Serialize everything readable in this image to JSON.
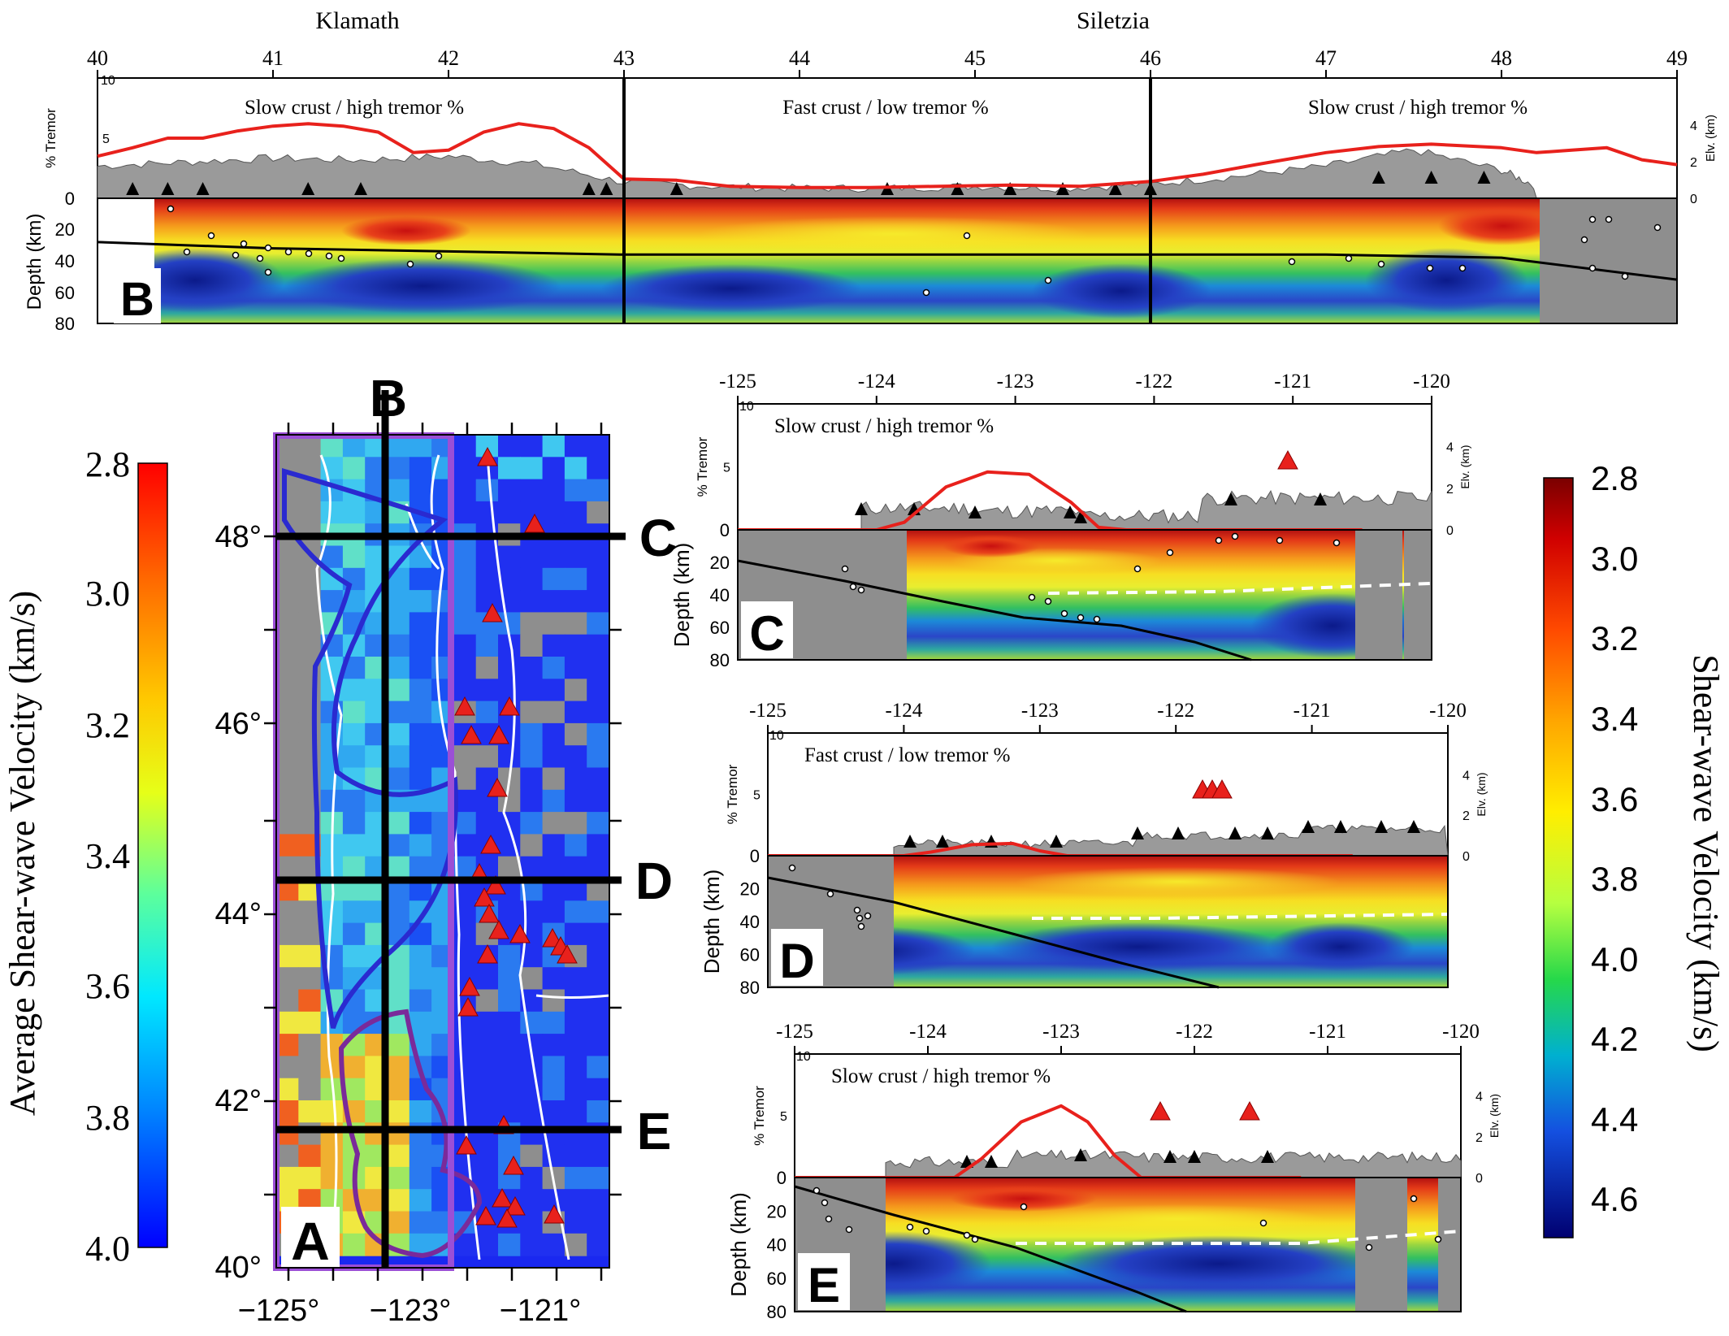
{
  "chart_data": [
    {
      "id": "B",
      "type": "profile-cross-section",
      "panel_letter": "B",
      "region_labels": [
        "Klamath",
        "Siletzia"
      ],
      "x_ticks": [
        "40",
        "41",
        "42",
        "43",
        "44",
        "45",
        "46",
        "47",
        "48",
        "49"
      ],
      "xlim": [
        40,
        49
      ],
      "dividers": [
        43,
        46
      ],
      "segment_labels": [
        "Slow crust / high tremor %",
        "Fast crust / low tremor %",
        "Slow crust / high tremor %"
      ],
      "tremor_axis": {
        "label": "% Tremor",
        "ticks": [
          "5",
          "10"
        ],
        "ylim": [
          0,
          10
        ]
      },
      "elevation_axis": {
        "label": "Elv. (km)",
        "ticks": [
          "0",
          "2",
          "4"
        ],
        "ylim": [
          0,
          6
        ]
      },
      "depth_axis": {
        "label": "Depth (km)",
        "ticks": [
          "0",
          "20",
          "40",
          "60",
          "80"
        ],
        "ylim": [
          0,
          80
        ]
      },
      "tremor_curve": {
        "x": [
          40,
          40.2,
          40.4,
          40.6,
          40.8,
          41,
          41.2,
          41.4,
          41.6,
          41.8,
          42,
          42.2,
          42.4,
          42.6,
          42.8,
          43,
          43.3,
          43.6,
          44,
          44.4,
          44.8,
          45.2,
          45.6,
          46,
          46.3,
          46.6,
          47,
          47.3,
          47.6,
          48,
          48.2,
          48.4,
          48.6,
          48.8,
          49
        ],
        "y": [
          3.5,
          4.2,
          5.0,
          5.0,
          5.6,
          6.0,
          6.2,
          6.0,
          5.5,
          3.8,
          4.0,
          5.5,
          6.2,
          5.8,
          4.2,
          1.6,
          1.5,
          1.0,
          0.9,
          0.9,
          1.0,
          1.1,
          1.0,
          1.4,
          2.0,
          2.8,
          3.8,
          4.3,
          4.5,
          4.2,
          3.8,
          4.0,
          4.2,
          3.2,
          2.8
        ]
      },
      "elevation_profile": {
        "x": [
          40,
          40.5,
          41,
          41.5,
          42,
          42.5,
          43,
          43.5,
          44,
          44.5,
          45,
          45.5,
          46,
          46.5,
          47,
          47.5,
          48,
          48.2
        ],
        "y": [
          1.4,
          1.6,
          1.8,
          1.7,
          1.9,
          1.5,
          0.6,
          0.4,
          0.3,
          0.3,
          0.4,
          0.3,
          0.5,
          0.9,
          1.4,
          2.2,
          1.2,
          0.4
        ]
      },
      "slab_line": {
        "x": [
          40,
          41,
          42,
          43,
          44,
          45,
          46,
          47,
          48,
          49
        ],
        "y": [
          28,
          32,
          34,
          36,
          36,
          36,
          36,
          36,
          38,
          52
        ]
      }
    },
    {
      "id": "A",
      "type": "heatmap-map",
      "panel_letter": "A",
      "x_ticks": [
        "−125°",
        "−123°",
        "−121°"
      ],
      "y_ticks": [
        "48°",
        "46°",
        "44°",
        "42°",
        "40°"
      ],
      "xlim": [
        -125,
        -120
      ],
      "ylim": [
        40,
        49
      ],
      "profile_labels": [
        "B",
        "C",
        "D",
        "E"
      ],
      "profile_latitudes": {
        "C": 48.0,
        "D": 44.3,
        "E": 41.6
      },
      "profile_longitude_B": -123.2
    },
    {
      "id": "C",
      "type": "profile-cross-section",
      "panel_letter": "C",
      "x_ticks": [
        "-125",
        "-124",
        "-123",
        "-122",
        "-121",
        "-120"
      ],
      "xlim": [
        -125,
        -120
      ],
      "segment_label": "Slow crust / high tremor %",
      "tremor_axis": {
        "label": "% Tremor",
        "ticks": [
          "5",
          "10"
        ]
      },
      "elevation_axis": {
        "label": "Elv. (km)",
        "ticks": [
          "0",
          "2",
          "4"
        ]
      },
      "depth_axis": {
        "label": "Depth (km)",
        "ticks": [
          "0",
          "20",
          "40",
          "60",
          "80"
        ]
      },
      "tremor_curve": {
        "x": [
          -125,
          -124,
          -123.8,
          -123.5,
          -123.2,
          -122.9,
          -122.6,
          -122.4,
          -122.2,
          -120.5
        ],
        "y": [
          0,
          0,
          0.6,
          3.4,
          4.6,
          4.4,
          2.2,
          0.2,
          0,
          0
        ]
      }
    },
    {
      "id": "D",
      "type": "profile-cross-section",
      "panel_letter": "D",
      "x_ticks": [
        "-125",
        "-124",
        "-123",
        "-122",
        "-121",
        "-120"
      ],
      "xlim": [
        -125,
        -120
      ],
      "segment_label": "Fast crust / low tremor %",
      "tremor_axis": {
        "label": "% Tremor",
        "ticks": [
          "5",
          "10"
        ]
      },
      "elevation_axis": {
        "label": "Elv. (km)",
        "ticks": [
          "0",
          "2",
          "4"
        ]
      },
      "depth_axis": {
        "label": "Depth (km)",
        "ticks": [
          "0",
          "20",
          "40",
          "60",
          "80"
        ]
      },
      "tremor_curve": {
        "x": [
          -125,
          -124,
          -123.8,
          -123.5,
          -123.2,
          -123,
          -122.8,
          -120.7
        ],
        "y": [
          0,
          0,
          0.3,
          0.9,
          1.0,
          0.4,
          0,
          0
        ]
      }
    },
    {
      "id": "E",
      "type": "profile-cross-section",
      "panel_letter": "E",
      "x_ticks": [
        "-125",
        "-124",
        "-123",
        "-122",
        "-121",
        "-120"
      ],
      "xlim": [
        -125,
        -120
      ],
      "segment_label": "Slow crust / high tremor %",
      "tremor_axis": {
        "label": "% Tremor",
        "ticks": [
          "5",
          "10"
        ]
      },
      "elevation_axis": {
        "label": "Elv. (km)",
        "ticks": [
          "0",
          "2",
          "4"
        ]
      },
      "depth_axis": {
        "label": "Depth (km)",
        "ticks": [
          "0",
          "20",
          "40",
          "60",
          "80"
        ]
      },
      "tremor_curve": {
        "x": [
          -125,
          -123.8,
          -123.6,
          -123.3,
          -123.0,
          -122.8,
          -122.6,
          -122.4,
          -121.2
        ],
        "y": [
          0,
          0,
          1.5,
          4.5,
          5.8,
          4.5,
          1.8,
          0,
          0
        ]
      }
    }
  ],
  "colorbar_left": {
    "label": "Average Shear-wave Velocity (km/s)",
    "ticks": [
      "2.8",
      "3.0",
      "3.2",
      "3.4",
      "3.6",
      "3.8",
      "4.0"
    ],
    "colormap": "jet",
    "range": [
      2.8,
      4.0
    ]
  },
  "colorbar_right": {
    "label": "Shear-wave Velocity (km/s)",
    "ticks": [
      "2.8",
      "3.0",
      "3.2",
      "3.4",
      "3.6",
      "3.8",
      "4.0",
      "4.2",
      "4.4",
      "4.6"
    ],
    "colormap": "jet-dark",
    "range": [
      2.8,
      4.7
    ]
  },
  "colors": {
    "tremor_curve": "#e8211c",
    "volcano": "#e8211c",
    "topography": "#9a9a9a",
    "mask": "#8e8e8e",
    "purple_box": "#9b4fd6",
    "blue_outline": "#2a2ad0",
    "klamath_outline": "#7a2a9a"
  }
}
